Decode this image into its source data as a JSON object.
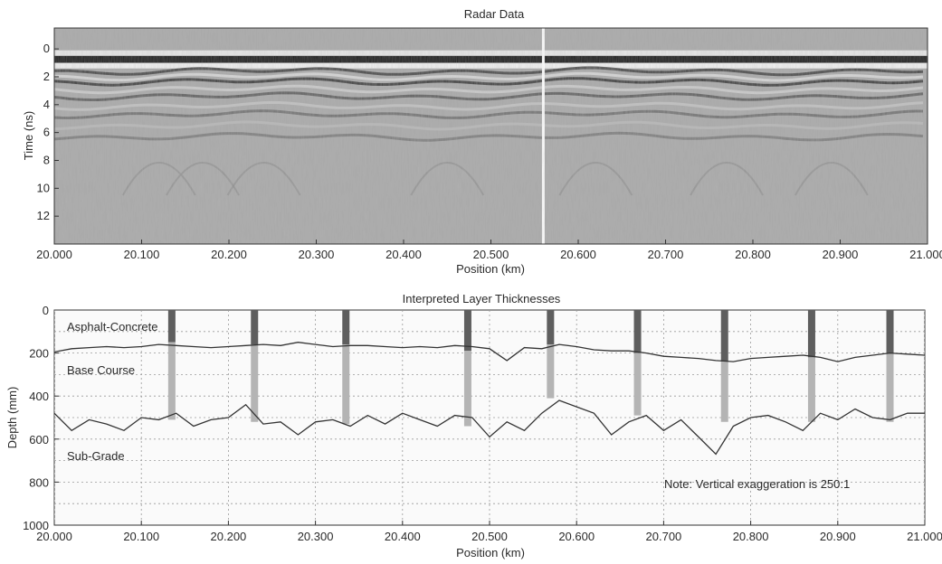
{
  "chart_data": [
    {
      "type": "heatmap",
      "title": "Radar Data",
      "xlabel": "Position (km)",
      "ylabel": "Time (ns)",
      "xlim": [
        20.0,
        21.0
      ],
      "ylim": [
        14,
        -1.5
      ],
      "x_ticks": [
        "20.000",
        "20.100",
        "20.200",
        "20.300",
        "20.400",
        "20.500",
        "20.600",
        "20.700",
        "20.800",
        "20.900",
        "21.000"
      ],
      "y_ticks": [
        "0",
        "2",
        "4",
        "6",
        "8",
        "10",
        "12"
      ],
      "colormap": "grayscale",
      "features": {
        "direct_arrival_ns": 0.8,
        "reflector_band_ns": [
          1.5,
          2.6
        ],
        "break_position_km": 20.56
      }
    },
    {
      "type": "line",
      "title": "Interpreted Layer Thicknesses",
      "xlabel": "Position (km)",
      "ylabel": "Depth (mm)",
      "xlim": [
        20.0,
        21.0
      ],
      "ylim": [
        1000,
        0
      ],
      "x_ticks": [
        "20.000",
        "20.100",
        "20.200",
        "20.300",
        "20.400",
        "20.500",
        "20.600",
        "20.700",
        "20.800",
        "20.900",
        "21.000"
      ],
      "y_ticks": [
        "0",
        "200",
        "400",
        "600",
        "800",
        "1000"
      ],
      "grid": true,
      "layer_labels": [
        "Asphalt-Concrete",
        "Base Course",
        "Sub-Grade"
      ],
      "note": "Note: Vertical exaggeration is 250:1",
      "x": [
        20.0,
        20.02,
        20.04,
        20.06,
        20.08,
        20.1,
        20.12,
        20.14,
        20.16,
        20.18,
        20.2,
        20.22,
        20.24,
        20.26,
        20.28,
        20.3,
        20.32,
        20.34,
        20.36,
        20.38,
        20.4,
        20.42,
        20.44,
        20.46,
        20.48,
        20.5,
        20.52,
        20.54,
        20.56,
        20.58,
        20.6,
        20.62,
        20.64,
        20.66,
        20.68,
        20.7,
        20.72,
        20.74,
        20.76,
        20.78,
        20.8,
        20.82,
        20.84,
        20.86,
        20.88,
        20.9,
        20.92,
        20.94,
        20.96,
        20.98,
        21.0
      ],
      "series": [
        {
          "values": [
            195,
            180,
            175,
            170,
            175,
            170,
            160,
            165,
            170,
            175,
            170,
            165,
            160,
            165,
            150,
            160,
            170,
            165,
            165,
            170,
            175,
            170,
            175,
            165,
            170,
            180,
            235,
            175,
            180,
            160,
            170,
            185,
            190,
            190,
            200,
            215,
            220,
            225,
            235,
            240,
            225,
            220,
            215,
            210,
            220,
            240,
            220,
            210,
            200,
            205,
            210
          ]
        },
        {
          "values": [
            480,
            560,
            510,
            530,
            560,
            500,
            510,
            480,
            540,
            510,
            500,
            440,
            530,
            520,
            580,
            520,
            510,
            540,
            490,
            530,
            480,
            510,
            540,
            490,
            500,
            590,
            520,
            560,
            480,
            420,
            450,
            480,
            580,
            520,
            490,
            560,
            510,
            590,
            670,
            540,
            500,
            490,
            520,
            560,
            480,
            510,
            460,
            500,
            510,
            480,
            480
          ]
        }
      ],
      "cores": [
        {
          "position": 20.135,
          "ac_mm": 150,
          "base_mm": 510
        },
        {
          "position": 20.23,
          "ac_mm": 160,
          "base_mm": 520
        },
        {
          "position": 20.335,
          "ac_mm": 160,
          "base_mm": 530
        },
        {
          "position": 20.475,
          "ac_mm": 190,
          "base_mm": 540
        },
        {
          "position": 20.57,
          "ac_mm": 160,
          "base_mm": 410
        },
        {
          "position": 20.67,
          "ac_mm": 200,
          "base_mm": 490
        },
        {
          "position": 20.77,
          "ac_mm": 240,
          "base_mm": 520
        },
        {
          "position": 20.87,
          "ac_mm": 220,
          "base_mm": 520
        },
        {
          "position": 20.96,
          "ac_mm": 200,
          "base_mm": 520
        }
      ]
    }
  ]
}
